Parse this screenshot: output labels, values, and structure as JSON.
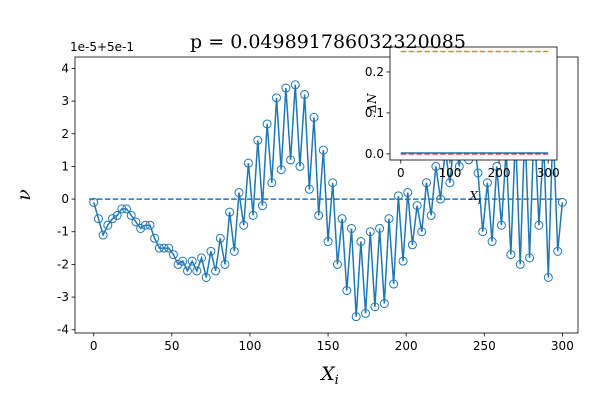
{
  "chart_data": [
    {
      "type": "line",
      "title": "p = 0.049891786032320085",
      "offset_text": "1e-5+5e-1",
      "xlabel": "X",
      "xlabel_sub": "i",
      "ylabel": "ν",
      "color": "#1f77b4",
      "marker": "open-circle",
      "x": [
        0,
        3,
        6,
        9,
        12,
        15,
        18,
        21,
        24,
        27,
        30,
        33,
        36,
        39,
        42,
        45,
        48,
        51,
        54,
        57,
        60,
        63,
        66,
        69,
        72,
        75,
        78,
        81,
        84,
        87,
        90,
        93,
        96,
        99,
        102,
        105,
        108,
        111,
        114,
        117,
        120,
        123,
        126,
        129,
        132,
        135,
        138,
        141,
        144,
        147,
        150,
        153,
        156,
        159,
        162,
        165,
        168,
        171,
        174,
        177,
        180,
        183,
        186,
        189,
        192,
        195,
        198,
        201,
        204,
        207,
        210,
        213,
        216,
        219,
        222,
        225,
        228,
        231,
        234,
        237,
        240,
        243,
        246,
        249,
        252,
        255,
        258,
        261,
        264,
        267,
        270,
        273,
        276,
        279,
        282,
        285,
        288,
        291,
        294,
        297,
        300
      ],
      "values": [
        -0.1,
        -0.6,
        -1.1,
        -0.8,
        -0.6,
        -0.5,
        -0.3,
        -0.3,
        -0.5,
        -0.7,
        -0.9,
        -0.8,
        -0.8,
        -1.2,
        -1.5,
        -1.5,
        -1.5,
        -1.7,
        -2.0,
        -1.9,
        -2.2,
        -1.9,
        -2.2,
        -1.8,
        -2.4,
        -1.6,
        -2.2,
        -1.2,
        -2.0,
        -0.4,
        -1.6,
        0.2,
        -0.8,
        1.1,
        -0.5,
        1.8,
        -0.2,
        2.3,
        0.5,
        3.1,
        0.9,
        3.4,
        1.2,
        3.5,
        1.0,
        3.2,
        0.3,
        2.5,
        -0.5,
        1.5,
        -1.3,
        0.5,
        -2.0,
        -0.6,
        -2.8,
        -0.9,
        -3.6,
        -1.3,
        -3.5,
        -1.0,
        -3.3,
        -0.9,
        -3.2,
        -0.6,
        -2.6,
        0.1,
        -1.9,
        0.2,
        -1.4,
        -0.2,
        -1.0,
        0.5,
        -0.5,
        1.0,
        0.0,
        1.5,
        0.5,
        2.0,
        1.0,
        2.3,
        1.2,
        2.0,
        0.8,
        -1.0,
        0.5,
        -1.3,
        1.0,
        -0.8,
        1.5,
        -1.7,
        2.0,
        -2.0,
        2.2,
        -1.8,
        2.4,
        -0.8,
        1.8,
        -2.4,
        2.3,
        -1.6,
        -0.1
      ],
      "reference_lines": [
        {
          "y": 0,
          "color": "#1f77b4",
          "dashed": true
        }
      ],
      "xlim": [
        -12,
        310
      ],
      "ylim": [
        -4.1,
        4.35
      ],
      "xticks": [
        0,
        50,
        100,
        150,
        200,
        250,
        300
      ],
      "yticks": [
        -4,
        -3,
        -2,
        -1,
        0,
        1,
        2,
        3,
        4
      ]
    },
    {
      "type": "line",
      "xlabel": "X",
      "xlabel_sub": "i",
      "ylabel": "ΔN",
      "color": "#1f77b4",
      "x": [
        0,
        300
      ],
      "values": [
        0.002,
        0.002
      ],
      "reference_lines": [
        {
          "y": 0.25,
          "color": "#ff7f0e",
          "dashed": true
        },
        {
          "y": 0,
          "color": "#d62728",
          "dashed": true
        }
      ],
      "xlim": [
        -22,
        318
      ],
      "ylim": [
        -0.015,
        0.261
      ],
      "xticks": [
        0,
        100,
        200,
        300
      ],
      "yticks": [
        {
          "value": 0,
          "label": "0.0"
        },
        {
          "value": 0.1,
          "label": "0.1"
        },
        {
          "value": 0.2,
          "label": "0.2"
        }
      ]
    }
  ]
}
